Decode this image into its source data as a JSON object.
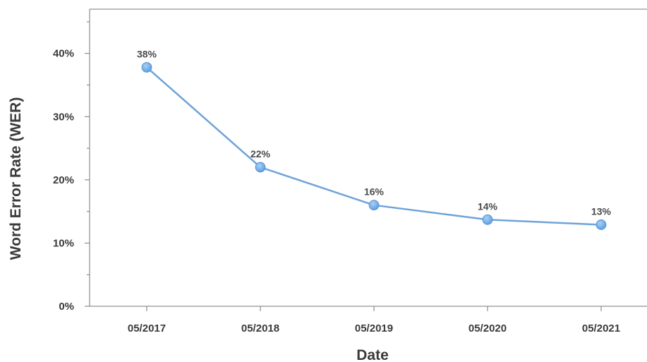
{
  "chart_data": {
    "type": "line",
    "x": [
      "05/2017",
      "05/2018",
      "05/2019",
      "05/2020",
      "05/2021"
    ],
    "series": [
      {
        "values": [
          37.8,
          22.0,
          16.0,
          13.7,
          12.9
        ]
      }
    ],
    "data_labels": [
      "38%",
      "22%",
      "16%",
      "14%",
      "13%"
    ],
    "y_ticks": [
      {
        "value": 0,
        "label": "0%"
      },
      {
        "value": 10,
        "label": "10%"
      },
      {
        "value": 20,
        "label": "20%"
      },
      {
        "value": 30,
        "label": "30%"
      },
      {
        "value": 40,
        "label": "40%"
      }
    ],
    "ylim": [
      0,
      47
    ],
    "xlabel": "Date",
    "ylabel": "Word Error Rate (WER)",
    "grid": false,
    "legend": "none",
    "colors": {
      "line": "#6fa3d8",
      "marker": "#5e9ee0",
      "marker_highlight": "#a9d0f5",
      "axis": "#777777",
      "text": "#3a3a3a"
    }
  }
}
